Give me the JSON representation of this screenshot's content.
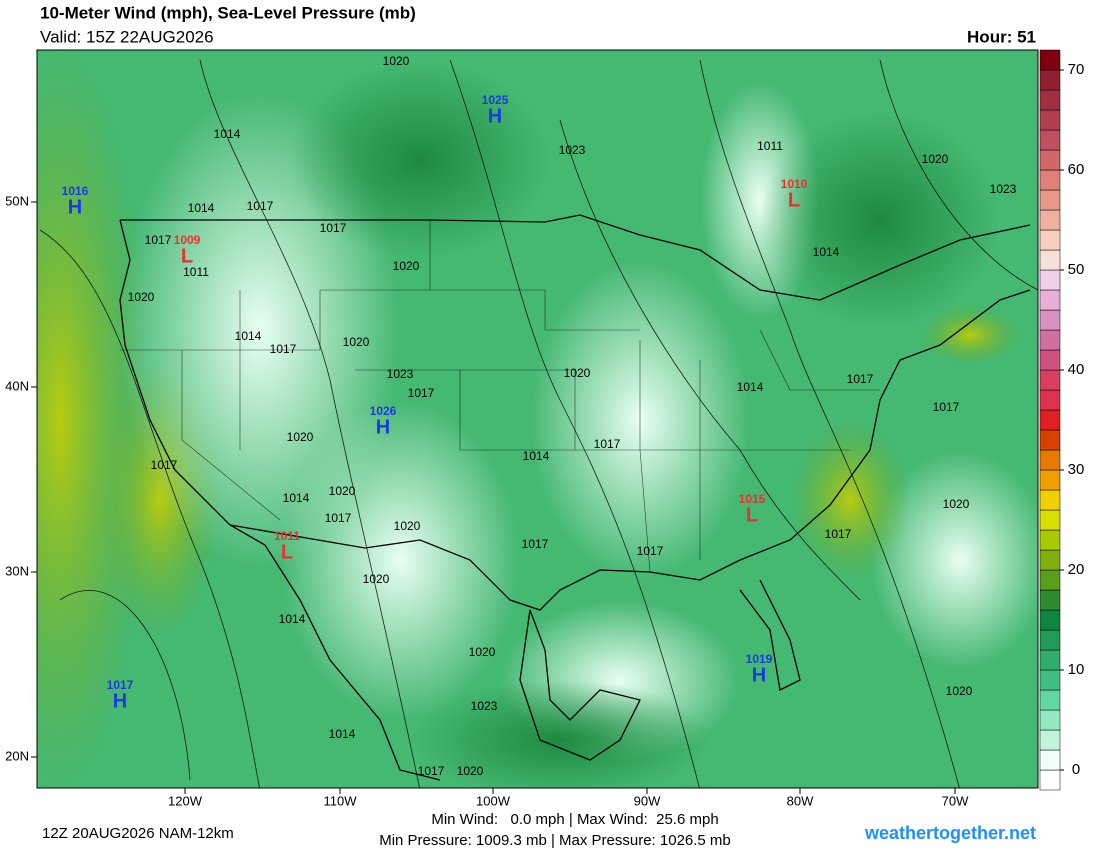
{
  "header": {
    "title": "10-Meter Wind (mph), Sea-Level Pressure (mb)",
    "valid": "Valid: 15Z 22AUG2026",
    "hour": "Hour: 51"
  },
  "map": {
    "lon_labels": [
      "120W",
      "110W",
      "100W",
      "90W",
      "80W",
      "70W"
    ],
    "lat_labels": [
      "50N",
      "40N",
      "30N",
      "20N"
    ],
    "pressure_centers": [
      {
        "type": "H",
        "value": 1016
      },
      {
        "type": "L",
        "value": 1009
      },
      {
        "type": "L",
        "value": 1011
      },
      {
        "type": "H",
        "value": 1017
      },
      {
        "type": "H",
        "value": 1025
      },
      {
        "type": "H",
        "value": 1026
      },
      {
        "type": "L",
        "value": 1015
      },
      {
        "type": "H",
        "value": 1019
      },
      {
        "type": "L",
        "value": 1010
      }
    ],
    "isobar_labels": [
      1020,
      1014,
      1023,
      1014,
      1017,
      1017,
      1017,
      1011,
      1020,
      1020,
      1014,
      1017,
      1020,
      1023,
      1017,
      1020,
      1014,
      1017,
      1017,
      1020,
      1017,
      1014,
      1017,
      1014,
      1020,
      1017,
      1020,
      1017,
      1017,
      1017,
      1020,
      1020,
      1014,
      1020,
      1023,
      1014,
      1017,
      1020,
      1020,
      1011,
      1020,
      1023,
      1014
    ]
  },
  "chart_data": {
    "type": "colorbar",
    "ylim": [
      -2,
      72
    ],
    "yticks": [
      0,
      10,
      20,
      30,
      40,
      50,
      60,
      70
    ],
    "bin_width": 2,
    "colors": [
      "#ffffff",
      "#f0fff8",
      "#c0f5dc",
      "#90ebc0",
      "#60d9a0",
      "#40c080",
      "#30ad6a",
      "#209a55",
      "#108540",
      "#2e8b2e",
      "#5a9e1a",
      "#7fb010",
      "#a8c800",
      "#d8e000",
      "#f0d000",
      "#f0a000",
      "#e87800",
      "#d84000",
      "#e02020",
      "#e03050",
      "#d84060",
      "#d05080",
      "#d070a0",
      "#d890c0",
      "#e8b0d8",
      "#f0d0e8",
      "#f8e0d8",
      "#f8d0c0",
      "#f0b0a0",
      "#e89888",
      "#e08078",
      "#d06868",
      "#c05060",
      "#b04050",
      "#a03040",
      "#902030",
      "#800010"
    ]
  },
  "footer": {
    "run": "12Z 20AUG2026 NAM-12km",
    "wind_range": "Min Wind:   0.0 mph | Max Wind:  25.6 mph",
    "pressure_range": "Min Pressure: 1009.3 mb | Max Pressure: 1026.5 mb",
    "site": "weathertogether.net"
  }
}
